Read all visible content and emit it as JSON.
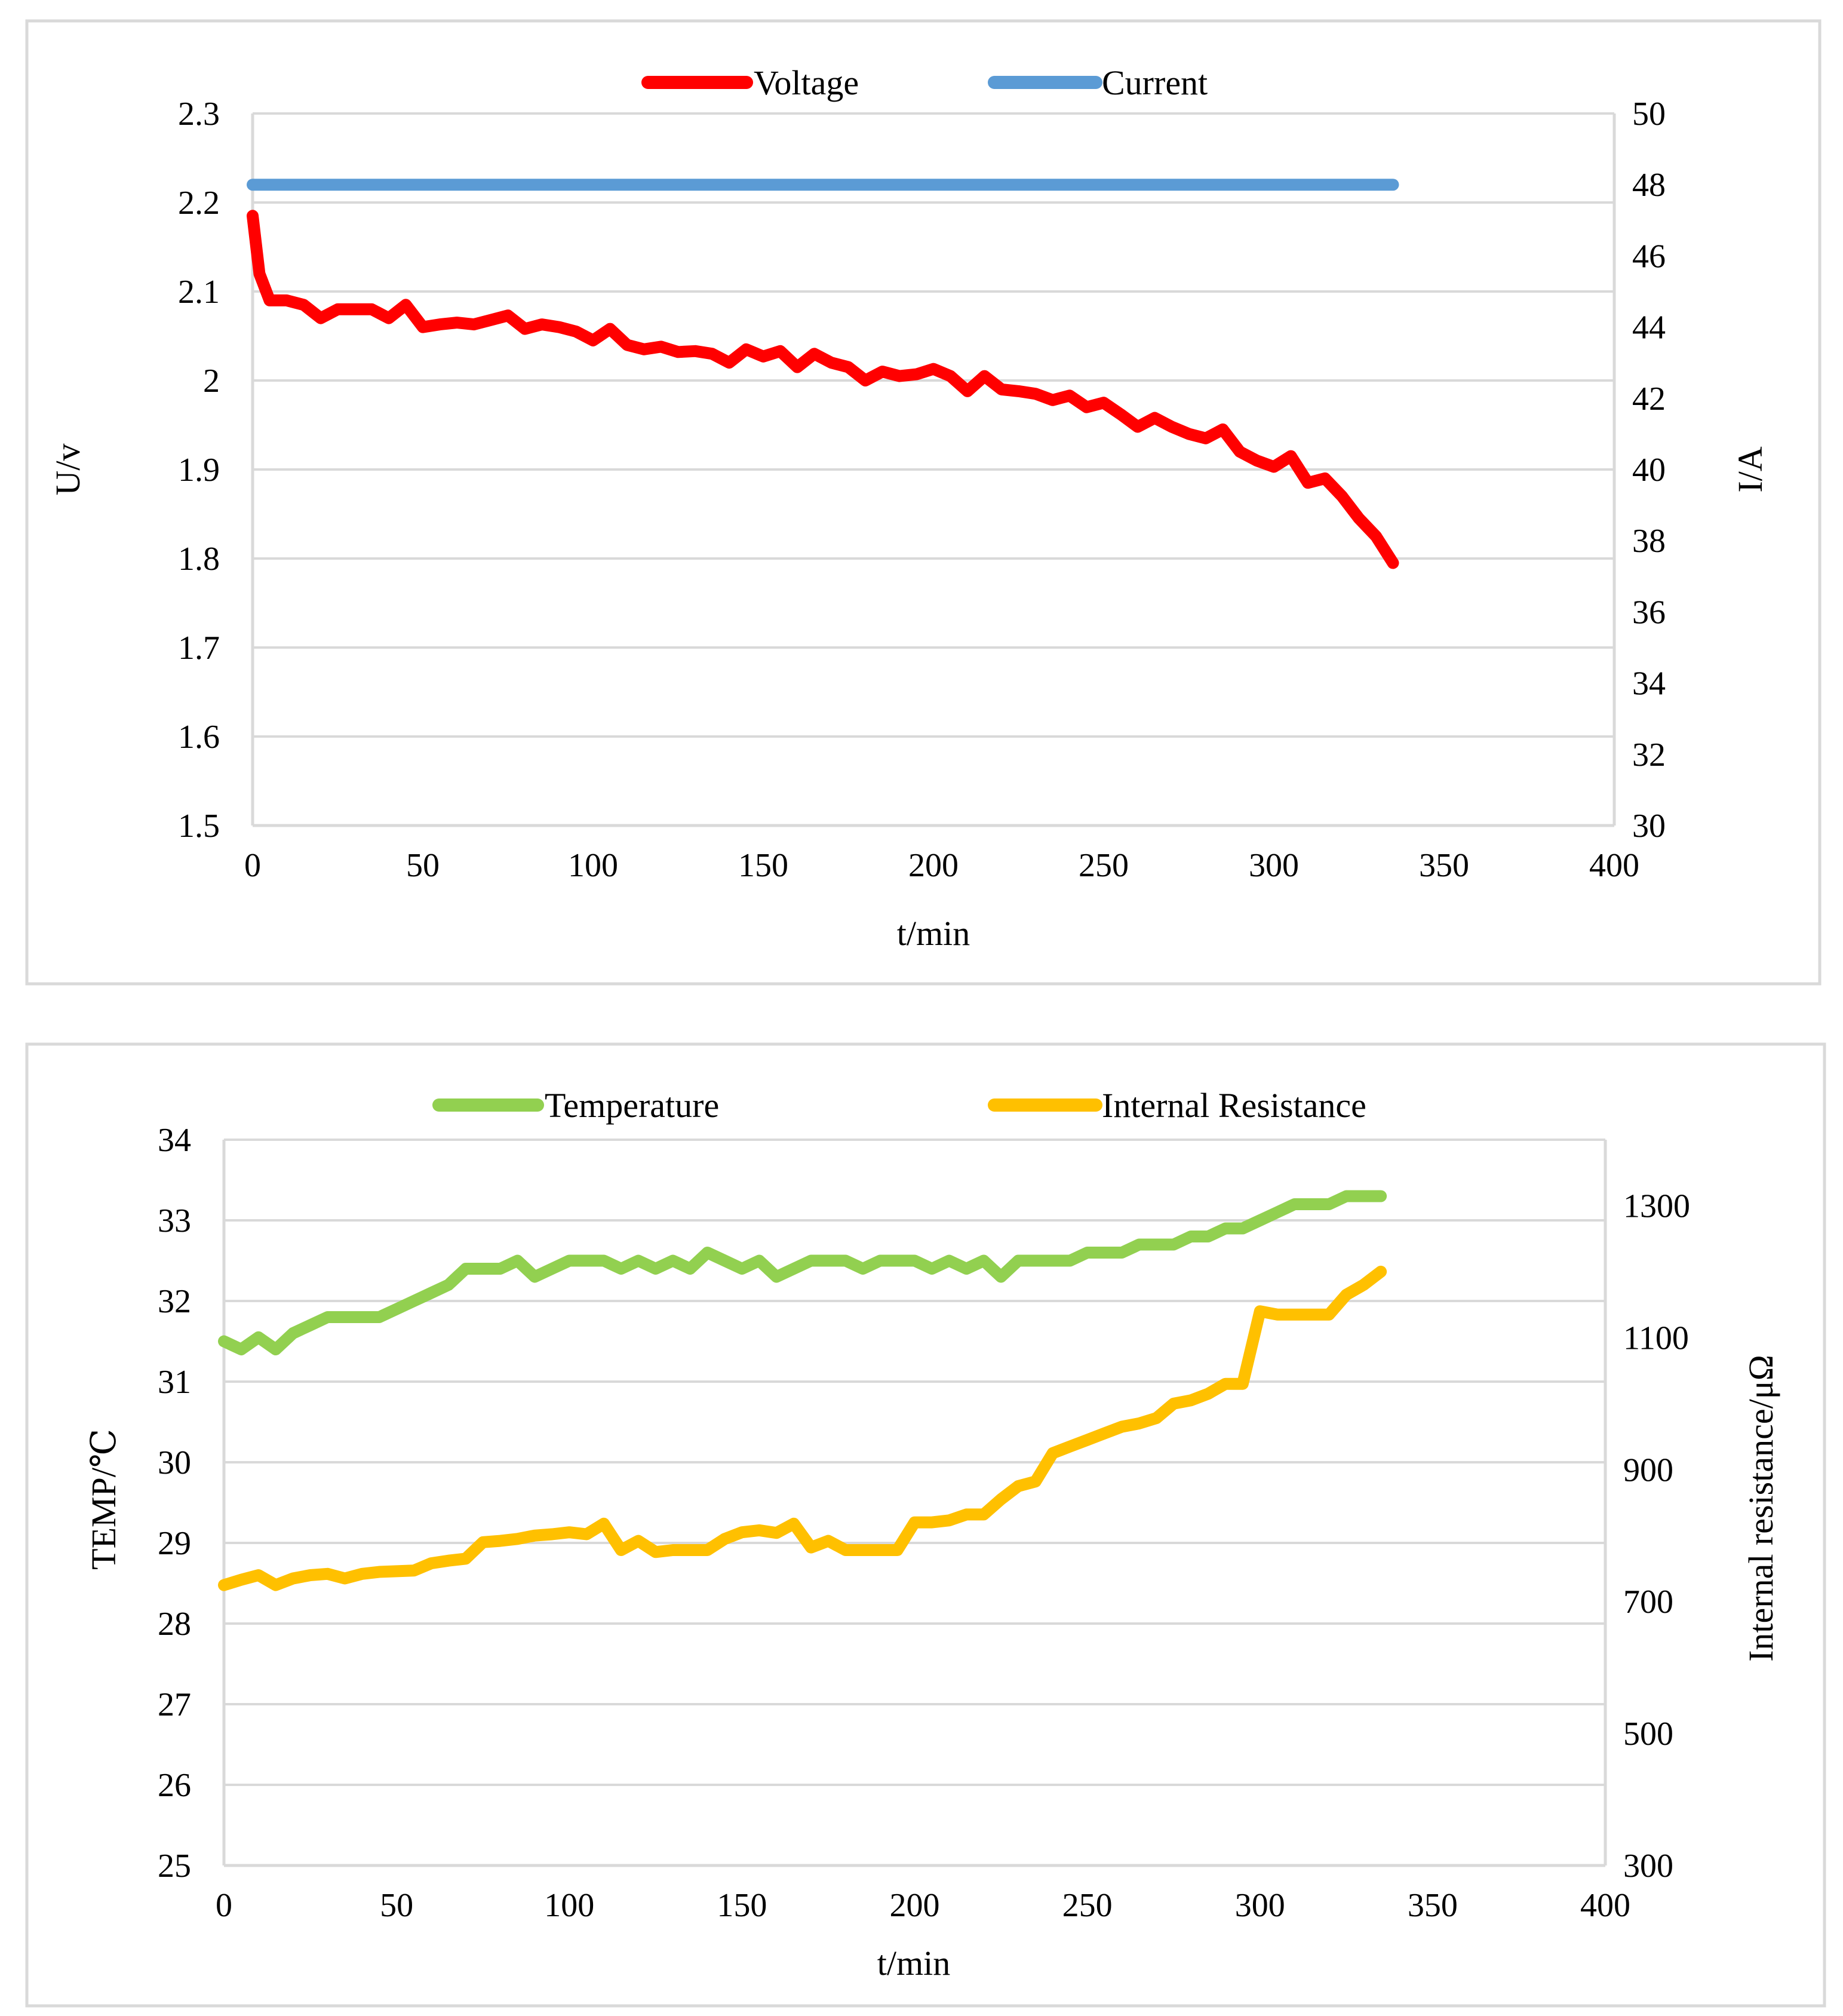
{
  "chart_data": [
    {
      "type": "line",
      "title": "",
      "xlabel": "t/min",
      "ylabel_left": "U/v",
      "ylabel_right": "I/A",
      "xlim": [
        0,
        400
      ],
      "ylim_left": [
        1.5,
        2.3
      ],
      "ylim_right": [
        30,
        50
      ],
      "x_ticks": [
        "0",
        "50",
        "100",
        "150",
        "200",
        "250",
        "300",
        "350",
        "400"
      ],
      "y_ticks_left": [
        "1.5",
        "1.6",
        "1.7",
        "1.8",
        "1.9",
        "2",
        "2.1",
        "2.2",
        "2.3"
      ],
      "y_ticks_right": [
        "30",
        "32",
        "34",
        "36",
        "38",
        "40",
        "42",
        "44",
        "46",
        "48",
        "50"
      ],
      "grid": true,
      "legend_position": "top",
      "series": [
        {
          "name": "Voltage",
          "axis": "left",
          "color": "#ff0000",
          "x": [
            0,
            2,
            5,
            10,
            15,
            20,
            25,
            30,
            35,
            40,
            45,
            50,
            55,
            60,
            65,
            70,
            75,
            80,
            85,
            90,
            95,
            100,
            105,
            110,
            115,
            120,
            125,
            130,
            135,
            140,
            145,
            150,
            155,
            160,
            165,
            170,
            175,
            180,
            185,
            190,
            195,
            200,
            205,
            210,
            215,
            220,
            225,
            230,
            235,
            240,
            245,
            250,
            255,
            260,
            265,
            270,
            275,
            280,
            285,
            290,
            295,
            300,
            305,
            310,
            315,
            320,
            325,
            330,
            335
          ],
          "y": [
            2.185,
            2.12,
            2.09,
            2.09,
            2.085,
            2.07,
            2.08,
            2.08,
            2.08,
            2.07,
            2.085,
            2.06,
            2.063,
            2.065,
            2.063,
            2.068,
            2.073,
            2.058,
            2.063,
            2.06,
            2.055,
            2.045,
            2.058,
            2.04,
            2.035,
            2.038,
            2.032,
            2.033,
            2.03,
            2.02,
            2.035,
            2.027,
            2.033,
            2.015,
            2.03,
            2.02,
            2.015,
            2.0,
            2.01,
            2.005,
            2.007,
            2.013,
            2.005,
            1.988,
            2.005,
            1.99,
            1.988,
            1.985,
            1.978,
            1.983,
            1.97,
            1.975,
            1.962,
            1.948,
            1.958,
            1.948,
            1.94,
            1.935,
            1.945,
            1.92,
            1.91,
            1.903,
            1.915,
            1.885,
            1.89,
            1.87,
            1.845,
            1.825,
            1.795
          ]
        },
        {
          "name": "Current",
          "axis": "right",
          "color": "#5b9bd5",
          "x": [
            0,
            50,
            100,
            150,
            200,
            250,
            300,
            335
          ],
          "y": [
            48,
            48,
            48,
            48,
            48,
            48,
            48,
            48
          ]
        }
      ]
    },
    {
      "type": "line",
      "title": "",
      "xlabel": "t/min",
      "ylabel_left": "TEMP/℃",
      "ylabel_right": "Internal resistance/μΩ",
      "xlim": [
        0,
        400
      ],
      "ylim_left": [
        25,
        34
      ],
      "ylim_right": [
        300,
        1400
      ],
      "x_ticks": [
        "0",
        "50",
        "100",
        "150",
        "200",
        "250",
        "300",
        "350",
        "400"
      ],
      "y_ticks_left": [
        "25",
        "26",
        "27",
        "28",
        "29",
        "30",
        "31",
        "32",
        "33",
        "34"
      ],
      "y_ticks_right": [
        "300",
        "500",
        "700",
        "900",
        "1100",
        "1300"
      ],
      "grid": true,
      "legend_position": "top",
      "series": [
        {
          "name": "Temperature",
          "axis": "left",
          "color": "#92d050",
          "x": [
            0,
            5,
            10,
            15,
            20,
            25,
            30,
            35,
            40,
            45,
            50,
            55,
            60,
            65,
            70,
            75,
            80,
            85,
            90,
            95,
            100,
            105,
            110,
            115,
            120,
            125,
            130,
            135,
            140,
            145,
            150,
            155,
            160,
            165,
            170,
            175,
            180,
            185,
            190,
            195,
            200,
            205,
            210,
            215,
            220,
            225,
            230,
            235,
            240,
            245,
            250,
            255,
            260,
            265,
            270,
            275,
            280,
            285,
            290,
            295,
            300,
            305,
            310,
            315,
            320,
            325,
            330,
            335
          ],
          "y": [
            31.5,
            31.4,
            31.55,
            31.4,
            31.6,
            31.7,
            31.8,
            31.8,
            31.8,
            31.8,
            31.9,
            32.0,
            32.1,
            32.2,
            32.4,
            32.4,
            32.4,
            32.5,
            32.3,
            32.4,
            32.5,
            32.5,
            32.5,
            32.4,
            32.5,
            32.4,
            32.5,
            32.4,
            32.6,
            32.5,
            32.4,
            32.5,
            32.3,
            32.4,
            32.5,
            32.5,
            32.5,
            32.4,
            32.5,
            32.5,
            32.5,
            32.4,
            32.5,
            32.4,
            32.5,
            32.3,
            32.5,
            32.5,
            32.5,
            32.5,
            32.6,
            32.6,
            32.6,
            32.7,
            32.7,
            32.7,
            32.8,
            32.8,
            32.9,
            32.9,
            33.0,
            33.1,
            33.2,
            33.2,
            33.2,
            33.3,
            33.3,
            33.3
          ]
        },
        {
          "name": "Internal Resistance",
          "axis": "right",
          "color": "#ffc000",
          "x": [
            0,
            5,
            10,
            15,
            20,
            25,
            30,
            35,
            40,
            45,
            50,
            55,
            60,
            65,
            70,
            75,
            80,
            85,
            90,
            95,
            100,
            105,
            110,
            115,
            120,
            125,
            130,
            135,
            140,
            145,
            150,
            155,
            160,
            165,
            170,
            175,
            180,
            185,
            190,
            195,
            200,
            205,
            210,
            215,
            220,
            225,
            230,
            235,
            240,
            245,
            250,
            255,
            260,
            265,
            270,
            275,
            280,
            285,
            290,
            295,
            300,
            305,
            310,
            315,
            320,
            325,
            330,
            335
          ],
          "y": [
            725,
            733,
            740,
            725,
            735,
            740,
            742,
            735,
            742,
            745,
            746,
            747,
            758,
            762,
            765,
            790,
            792,
            795,
            800,
            802,
            805,
            802,
            818,
            778,
            792,
            775,
            778,
            778,
            778,
            795,
            805,
            808,
            804,
            818,
            782,
            792,
            778,
            778,
            778,
            778,
            820,
            820,
            823,
            832,
            832,
            855,
            875,
            882,
            925,
            935,
            945,
            955,
            965,
            970,
            978,
            1000,
            1005,
            1015,
            1030,
            1030,
            1140,
            1135,
            1135,
            1135,
            1135,
            1165,
            1180,
            1200
          ]
        }
      ]
    }
  ]
}
